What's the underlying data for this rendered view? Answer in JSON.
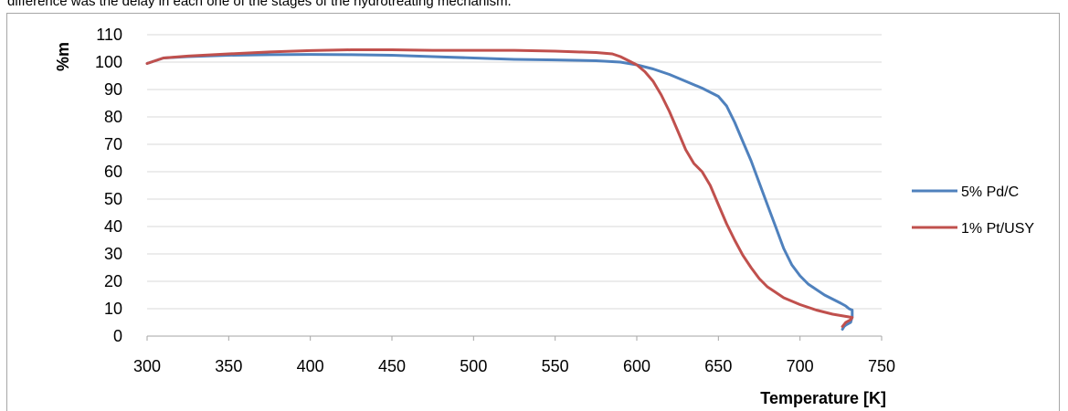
{
  "caption": "difference was the delay in each one of the stages of the hydrotreating mechanism.",
  "chart_data": {
    "type": "line",
    "xlabel": "Temperature [K]",
    "ylabel": "%m",
    "xlim": [
      300,
      750
    ],
    "ylim": [
      0,
      110
    ],
    "xticks": [
      300,
      350,
      400,
      450,
      500,
      550,
      600,
      650,
      700,
      750
    ],
    "yticks": [
      0,
      10,
      20,
      30,
      40,
      50,
      60,
      70,
      80,
      90,
      100,
      110
    ],
    "grid": true,
    "legend_position": "right",
    "series": [
      {
        "name": "5% Pd/C",
        "color": "#4f81bd",
        "x": [
          300,
          310,
          325,
          350,
          375,
          400,
          425,
          450,
          475,
          500,
          525,
          550,
          575,
          590,
          600,
          610,
          620,
          630,
          640,
          650,
          655,
          660,
          665,
          670,
          675,
          680,
          685,
          690,
          695,
          700,
          705,
          710,
          715,
          720,
          725,
          728,
          730,
          732,
          732,
          731,
          728,
          727,
          726
        ],
        "y": [
          99.5,
          101.5,
          102,
          102.5,
          102.7,
          102.8,
          102.7,
          102.5,
          102,
          101.5,
          101,
          100.8,
          100.5,
          100,
          99,
          97.5,
          95.5,
          93,
          90.5,
          87.5,
          84,
          78,
          71,
          64,
          56,
          48,
          40,
          32,
          26,
          22,
          19,
          17,
          15,
          13.5,
          12,
          11,
          10,
          9.5,
          7,
          5,
          4,
          3.5,
          2.5
        ]
      },
      {
        "name": "1% Pt/USY",
        "color": "#c0504d",
        "x": [
          300,
          310,
          325,
          350,
          375,
          400,
          425,
          450,
          475,
          500,
          525,
          550,
          575,
          585,
          590,
          595,
          600,
          605,
          610,
          615,
          620,
          625,
          630,
          635,
          640,
          645,
          650,
          655,
          660,
          665,
          670,
          675,
          680,
          685,
          690,
          700,
          710,
          720,
          725,
          730,
          732,
          731,
          728,
          726
        ],
        "y": [
          99.5,
          101.5,
          102.2,
          103,
          103.7,
          104.2,
          104.5,
          104.5,
          104.3,
          104.3,
          104.3,
          104,
          103.5,
          103,
          102,
          100.5,
          99,
          96.5,
          93,
          88,
          82,
          75,
          68,
          63,
          60,
          55,
          48,
          41,
          35,
          29.5,
          25,
          21,
          18,
          16,
          14,
          11.5,
          9.5,
          8,
          7.5,
          7,
          6.8,
          6,
          5,
          3.5
        ]
      }
    ]
  }
}
